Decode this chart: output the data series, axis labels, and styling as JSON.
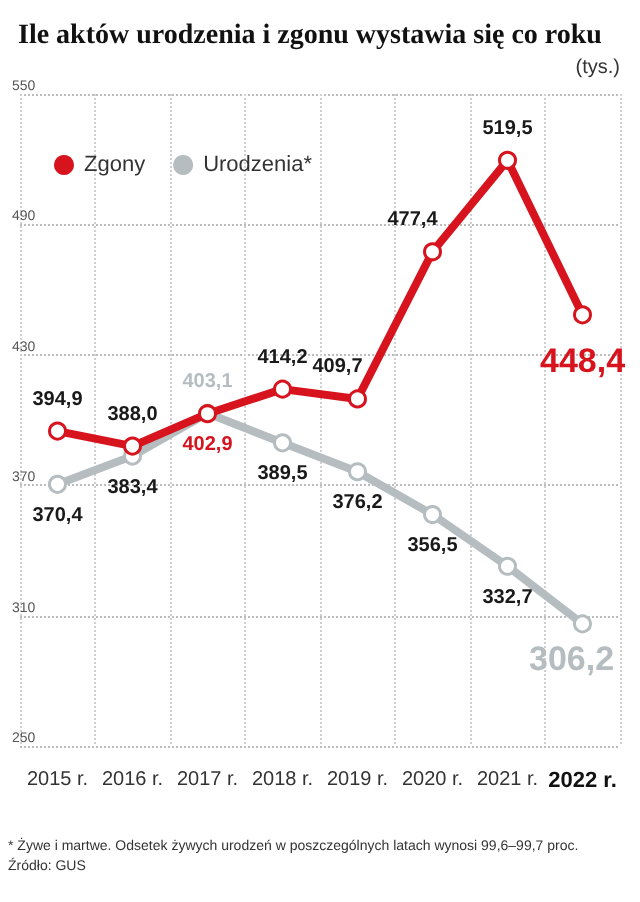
{
  "chart_data": {
    "type": "line",
    "title": "Ile aktów urodzenia i zgonu wystawia się co roku",
    "ylabel": "(tys.)",
    "categories": [
      "2015 r.",
      "2016 r.",
      "2017 r.",
      "2018 r.",
      "2019 r.",
      "2020 r.",
      "2021 r.",
      "2022 r."
    ],
    "series": [
      {
        "name": "Zgony",
        "color": "#d7141e",
        "values": [
          394.9,
          388.0,
          402.9,
          414.2,
          409.7,
          477.4,
          519.5,
          448.4
        ],
        "value_labels": [
          "394,9",
          "388,0",
          "402,9",
          "414,2",
          "409,7",
          "477,4",
          "519,5",
          "448,4"
        ]
      },
      {
        "name": "Urodzenia*",
        "color": "#b5bdc1",
        "values": [
          370.4,
          383.4,
          403.1,
          389.5,
          376.2,
          356.5,
          332.7,
          306.2
        ],
        "value_labels": [
          "370,4",
          "383,4",
          "403,1",
          "389,5",
          "376,2",
          "356,5",
          "332,7",
          "306,2"
        ]
      }
    ],
    "ylim": [
      250,
      550
    ],
    "yticks": [
      250,
      310,
      370,
      430,
      490,
      550
    ],
    "grid": true,
    "legend": "top left",
    "marker": "circle",
    "line_style": "solid",
    "annotations": [
      "* Żywe i martwe. Odsetek żywych urodzeń w poszczególnych latach wynosi 99,6–99,7 proc.",
      "Źródło: GUS"
    ]
  }
}
